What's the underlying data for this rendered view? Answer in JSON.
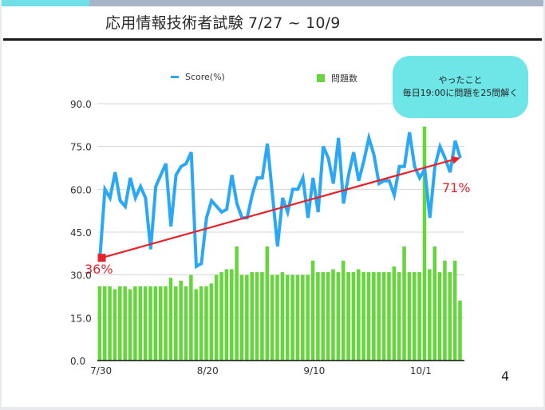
{
  "slide": {
    "title": "応用情報技術者試験 7/27 ~ 10/9",
    "page_number": "4",
    "callout": {
      "line1": "やったこと",
      "line2": "毎日19:00に問題を25問解く"
    },
    "colors": {
      "accent": "#6ee0e6",
      "score_line": "#2aa8f5",
      "bars": "#66d63d",
      "trend": "#e8212a"
    }
  },
  "legend": {
    "score": "Score(%)",
    "questions": "問題数"
  },
  "annotations": {
    "start_label": "36%",
    "end_label": "71%"
  },
  "chart_data": {
    "type": "bar+line",
    "title": "",
    "xlabel": "",
    "ylabel": "",
    "ylim": [
      0,
      90
    ],
    "yticks": [
      "0.0",
      "15.0",
      "30.0",
      "45.0",
      "60.0",
      "75.0",
      "90.0"
    ],
    "xtick_labels": [
      "7/30",
      "8/20",
      "9/10",
      "10/1"
    ],
    "xtick_index": [
      0,
      21,
      42,
      63
    ],
    "grid": true,
    "legend_position": "top",
    "n_points": 72,
    "series": [
      {
        "name": "Score(%)",
        "kind": "line",
        "values": [
          36,
          60,
          57,
          66,
          56,
          54,
          64,
          57,
          61,
          57,
          39,
          61,
          65,
          69,
          47,
          65,
          68,
          69,
          73,
          33,
          34,
          50,
          56,
          54,
          52,
          53,
          65,
          55,
          50,
          50,
          58,
          64,
          64,
          76,
          58,
          40,
          57,
          52,
          60,
          60,
          64,
          50,
          64,
          52,
          75,
          71,
          62,
          78,
          55,
          65,
          73,
          63,
          70,
          78,
          72,
          62,
          63,
          63,
          58,
          68,
          68,
          80,
          68,
          64,
          67,
          50,
          68,
          75,
          71,
          66,
          77,
          71
        ]
      },
      {
        "name": "問題数",
        "kind": "bar",
        "values": [
          26,
          26,
          26,
          25,
          26,
          26,
          25,
          26,
          26,
          26,
          26,
          26,
          26,
          26,
          29,
          26,
          28,
          26,
          30,
          25,
          26,
          26,
          27,
          30,
          31,
          32,
          32,
          40,
          30,
          30,
          31,
          31,
          31,
          40,
          30,
          30,
          31,
          30,
          30,
          30,
          30,
          30,
          35,
          31,
          31,
          31,
          32,
          31,
          35,
          31,
          31,
          32,
          31,
          31,
          31,
          31,
          31,
          31,
          33,
          31,
          40,
          31,
          31,
          31,
          82,
          32,
          40,
          31,
          35,
          31,
          35,
          21
        ]
      }
    ],
    "trend_line": {
      "from": {
        "index": 1,
        "value": 36
      },
      "to": {
        "index": 71,
        "value": 71
      }
    }
  }
}
